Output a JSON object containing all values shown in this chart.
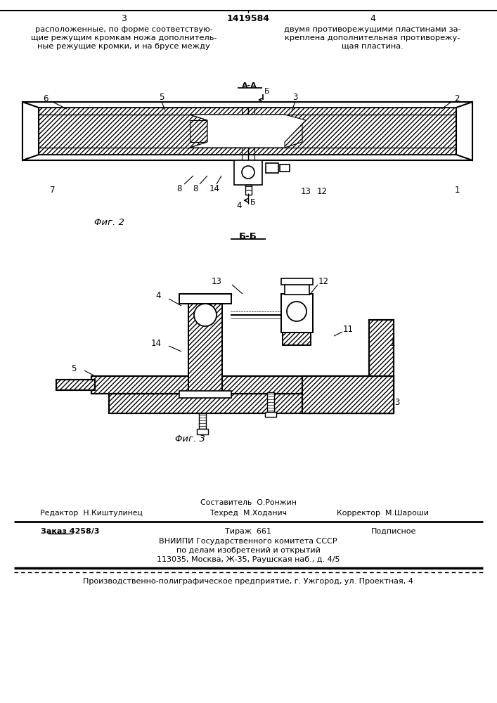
{
  "page_color": "#ffffff",
  "title_text": "1419584",
  "page_num_left": "3",
  "page_num_right": "4",
  "text_left_lines": [
    "расположенные, по форме соответствую-",
    "щие режущим кромкам ножа дополнитель-",
    "ные режущие кромки, и на брусе между"
  ],
  "text_right_lines": [
    "двумя противорежущими пластинами за-",
    "креплена дополнительная противорежу-",
    "щая пластина."
  ],
  "fig2_label": "Φиг. 2",
  "fig3_label": "Φиг. 3",
  "section_aa": "А-А",
  "section_bb": "Б-Б",
  "editor_line": "Редактор  Н.Киштулинец",
  "compositor_line": "Составитель  О.Ронжин",
  "techred_line": "Техред  М.Ходанич",
  "corrector_line": "Корректор  М.Шароши",
  "order_line": "Заказ 4258/3",
  "tirazh_line": "Тираж  661",
  "podpisnoe_line": "Подписное",
  "vniip_line1": "ВНИИПИ Государственного комитета СССР",
  "vniip_line2": "по делам изобретений и открытий",
  "vniip_line3": "113035, Москва, Ж-35, Раушская наб., д. 4/5",
  "factory_line": "Производственно-полиграфическое предприятие, г. Ужгород, ул. Проектная, 4"
}
